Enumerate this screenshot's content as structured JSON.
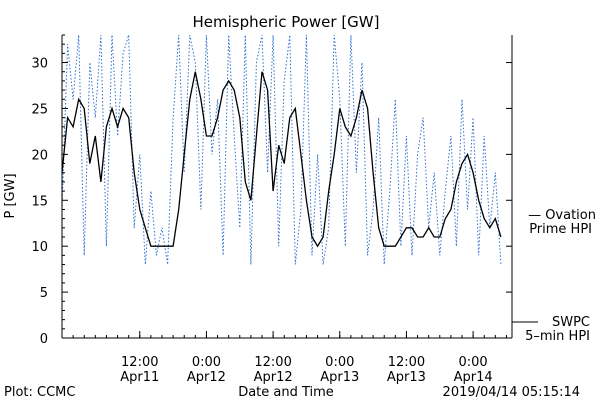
{
  "chart_data": {
    "type": "line",
    "title": "Hemispheric Power [GW]",
    "xlabel": "Date and Time",
    "ylabel": "P [GW]",
    "ylim": [
      0,
      33
    ],
    "yticks": [
      0,
      5,
      10,
      15,
      20,
      25,
      30
    ],
    "xlim": [
      "2019-04-10T22:00",
      "2019-04-14T07:00"
    ],
    "xticks": [
      {
        "t": "2019-04-11T12:00",
        "line1": "12:00",
        "line2": "Apr11"
      },
      {
        "t": "2019-04-12T00:00",
        "line1": "0:00",
        "line2": "Apr12"
      },
      {
        "t": "2019-04-12T12:00",
        "line1": "12:00",
        "line2": "Apr12"
      },
      {
        "t": "2019-04-13T00:00",
        "line1": "0:00",
        "line2": "Apr13"
      },
      {
        "t": "2019-04-13T12:00",
        "line1": "12:00",
        "line2": "Apr13"
      },
      {
        "t": "2019-04-14T00:00",
        "line1": "0:00",
        "line2": "Apr14"
      }
    ],
    "series": [
      {
        "name": "SWPC 5-min HPI",
        "color": "#000000",
        "style": "solid",
        "x": [
          "2019-04-10T22:00",
          "2019-04-10T23:00",
          "2019-04-11T00:00",
          "2019-04-11T01:00",
          "2019-04-11T02:00",
          "2019-04-11T03:00",
          "2019-04-11T04:00",
          "2019-04-11T05:00",
          "2019-04-11T06:00",
          "2019-04-11T07:00",
          "2019-04-11T08:00",
          "2019-04-11T09:00",
          "2019-04-11T10:00",
          "2019-04-11T11:00",
          "2019-04-11T12:00",
          "2019-04-11T13:00",
          "2019-04-11T14:00",
          "2019-04-11T15:00",
          "2019-04-11T16:00",
          "2019-04-11T17:00",
          "2019-04-11T18:00",
          "2019-04-11T19:00",
          "2019-04-11T20:00",
          "2019-04-11T21:00",
          "2019-04-11T22:00",
          "2019-04-11T23:00",
          "2019-04-12T00:00",
          "2019-04-12T01:00",
          "2019-04-12T02:00",
          "2019-04-12T03:00",
          "2019-04-12T04:00",
          "2019-04-12T05:00",
          "2019-04-12T06:00",
          "2019-04-12T07:00",
          "2019-04-12T08:00",
          "2019-04-12T09:00",
          "2019-04-12T10:00",
          "2019-04-12T11:00",
          "2019-04-12T12:00",
          "2019-04-12T13:00",
          "2019-04-12T14:00",
          "2019-04-12T15:00",
          "2019-04-12T16:00",
          "2019-04-12T17:00",
          "2019-04-12T18:00",
          "2019-04-12T19:00",
          "2019-04-12T20:00",
          "2019-04-12T21:00",
          "2019-04-12T22:00",
          "2019-04-12T23:00",
          "2019-04-13T00:00",
          "2019-04-13T01:00",
          "2019-04-13T02:00",
          "2019-04-13T03:00",
          "2019-04-13T04:00",
          "2019-04-13T05:00",
          "2019-04-13T06:00",
          "2019-04-13T07:00",
          "2019-04-13T08:00",
          "2019-04-13T09:00",
          "2019-04-13T10:00",
          "2019-04-13T11:00",
          "2019-04-13T12:00",
          "2019-04-13T13:00",
          "2019-04-13T14:00",
          "2019-04-13T15:00",
          "2019-04-13T16:00",
          "2019-04-13T17:00",
          "2019-04-13T18:00",
          "2019-04-13T19:00",
          "2019-04-13T20:00",
          "2019-04-13T21:00",
          "2019-04-13T22:00",
          "2019-04-13T23:00",
          "2019-04-14T00:00",
          "2019-04-14T01:00",
          "2019-04-14T02:00",
          "2019-04-14T03:00",
          "2019-04-14T04:00",
          "2019-04-14T05:00"
        ],
        "y": [
          18,
          24,
          23,
          26,
          25,
          19,
          22,
          17,
          23,
          25,
          23,
          25,
          24,
          18,
          14,
          12,
          10,
          10,
          10,
          10,
          10,
          14,
          20,
          26,
          29,
          26,
          22,
          22,
          24,
          27,
          28,
          27,
          24,
          17,
          15,
          22,
          29,
          27,
          16,
          21,
          19,
          24,
          25,
          20,
          15,
          11,
          10,
          11,
          16,
          20,
          25,
          23,
          22,
          24,
          27,
          25,
          18,
          12,
          10,
          10,
          10,
          11,
          12,
          12,
          11,
          11,
          12,
          11,
          11,
          13,
          14,
          17,
          19,
          20,
          18,
          15,
          13,
          12,
          13,
          11
        ]
      },
      {
        "name": "Ovation Prime HPI",
        "color": "#2b6fd0",
        "style": "dotted",
        "x": [
          "2019-04-10T22:00",
          "2019-04-10T23:00",
          "2019-04-11T00:00",
          "2019-04-11T01:00",
          "2019-04-11T02:00",
          "2019-04-11T03:00",
          "2019-04-11T04:00",
          "2019-04-11T05:00",
          "2019-04-11T06:00",
          "2019-04-11T07:00",
          "2019-04-11T08:00",
          "2019-04-11T09:00",
          "2019-04-11T10:00",
          "2019-04-11T11:00",
          "2019-04-11T12:00",
          "2019-04-11T13:00",
          "2019-04-11T14:00",
          "2019-04-11T15:00",
          "2019-04-11T16:00",
          "2019-04-11T17:00",
          "2019-04-11T18:00",
          "2019-04-11T19:00",
          "2019-04-11T20:00",
          "2019-04-11T21:00",
          "2019-04-11T22:00",
          "2019-04-11T23:00",
          "2019-04-12T00:00",
          "2019-04-12T01:00",
          "2019-04-12T02:00",
          "2019-04-12T03:00",
          "2019-04-12T04:00",
          "2019-04-12T05:00",
          "2019-04-12T06:00",
          "2019-04-12T07:00",
          "2019-04-12T08:00",
          "2019-04-12T09:00",
          "2019-04-12T10:00",
          "2019-04-12T11:00",
          "2019-04-12T12:00",
          "2019-04-12T13:00",
          "2019-04-12T14:00",
          "2019-04-12T15:00",
          "2019-04-12T16:00",
          "2019-04-12T17:00",
          "2019-04-12T18:00",
          "2019-04-12T19:00",
          "2019-04-12T20:00",
          "2019-04-12T21:00",
          "2019-04-12T22:00",
          "2019-04-12T23:00",
          "2019-04-13T00:00",
          "2019-04-13T01:00",
          "2019-04-13T02:00",
          "2019-04-13T03:00",
          "2019-04-13T04:00",
          "2019-04-13T05:00",
          "2019-04-13T06:00",
          "2019-04-13T07:00",
          "2019-04-13T08:00",
          "2019-04-13T09:00",
          "2019-04-13T10:00",
          "2019-04-13T11:00",
          "2019-04-13T12:00",
          "2019-04-13T13:00",
          "2019-04-13T14:00",
          "2019-04-13T15:00",
          "2019-04-13T16:00",
          "2019-04-13T17:00",
          "2019-04-13T18:00",
          "2019-04-13T19:00",
          "2019-04-13T20:00",
          "2019-04-13T21:00",
          "2019-04-13T22:00",
          "2019-04-13T23:00",
          "2019-04-14T00:00",
          "2019-04-14T01:00",
          "2019-04-14T02:00",
          "2019-04-14T03:00",
          "2019-04-14T04:00",
          "2019-04-14T05:00"
        ],
        "y": [
          14,
          32,
          26,
          33,
          9,
          30,
          24,
          33,
          10,
          33,
          22,
          31,
          33,
          12,
          20,
          8,
          16,
          9,
          12,
          8,
          24,
          33,
          18,
          33,
          30,
          14,
          33,
          20,
          26,
          9,
          33,
          22,
          12,
          33,
          8,
          30,
          33,
          18,
          33,
          10,
          28,
          33,
          8,
          14,
          33,
          9,
          20,
          8,
          12,
          33,
          26,
          10,
          33,
          18,
          30,
          9,
          14,
          24,
          8,
          16,
          26,
          10,
          22,
          9,
          20,
          24,
          12,
          18,
          9,
          16,
          22,
          10,
          26,
          14,
          24,
          9,
          22,
          12,
          18,
          8
        ]
      }
    ],
    "legend": [
      {
        "line1": "— Ovation",
        "line2": "Prime HPI",
        "color": "#2b6fd0"
      },
      {
        "line1": "SWPC",
        "line2": "5–min HPI",
        "color": "#000000"
      }
    ]
  },
  "footer": {
    "plot_credit": "Plot: CCMC",
    "timestamp": "2019/04/14 05:15:14"
  }
}
